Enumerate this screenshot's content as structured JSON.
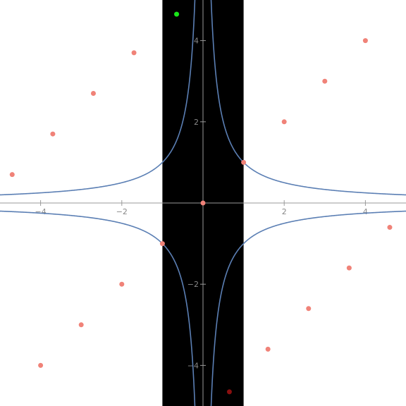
{
  "chart_data": {
    "type": "scatter",
    "title": "",
    "xlabel": "",
    "ylabel": "",
    "xlim": [
      -5,
      5
    ],
    "ylim": [
      -5,
      5
    ],
    "grid": false,
    "x_ticks": [
      {
        "value": -4,
        "label": "−4"
      },
      {
        "value": -2,
        "label": "−2"
      },
      {
        "value": 2,
        "label": "2"
      },
      {
        "value": 4,
        "label": "4"
      }
    ],
    "y_ticks": [
      {
        "value": 4,
        "label": "4"
      },
      {
        "value": 2,
        "label": "2"
      },
      {
        "value": -2,
        "label": "−2"
      },
      {
        "value": -4,
        "label": "−4"
      }
    ],
    "shaded_band": {
      "x_range": [
        -1,
        1
      ],
      "color": "#000000"
    },
    "curves": [
      {
        "function": "y = 1/x",
        "color": "#5b7fb4"
      },
      {
        "function": "y = -1/x",
        "color": "#5b7fb4"
      }
    ],
    "point_color": "#f08278",
    "points": [
      [
        -4.7,
        0.7
      ],
      [
        -3.7,
        1.7
      ],
      [
        -2.7,
        2.7
      ],
      [
        -1.7,
        3.7
      ],
      [
        -4.0,
        -4.0
      ],
      [
        -3.0,
        -3.0
      ],
      [
        -2.0,
        -2.0
      ],
      [
        -1.0,
        -1.0
      ],
      [
        0.0,
        0.0
      ],
      [
        1.0,
        1.0
      ],
      [
        2.0,
        2.0
      ],
      [
        3.0,
        3.0
      ],
      [
        4.0,
        4.0
      ],
      [
        1.6,
        -3.6
      ],
      [
        2.6,
        -2.6
      ],
      [
        3.6,
        -1.6
      ],
      [
        4.6,
        -0.6
      ]
    ],
    "special_points": [
      {
        "x": -0.65,
        "y": 4.65,
        "color": "#19e619"
      },
      {
        "x": 0.65,
        "y": -4.65,
        "color": "#8a0f0f"
      }
    ]
  }
}
